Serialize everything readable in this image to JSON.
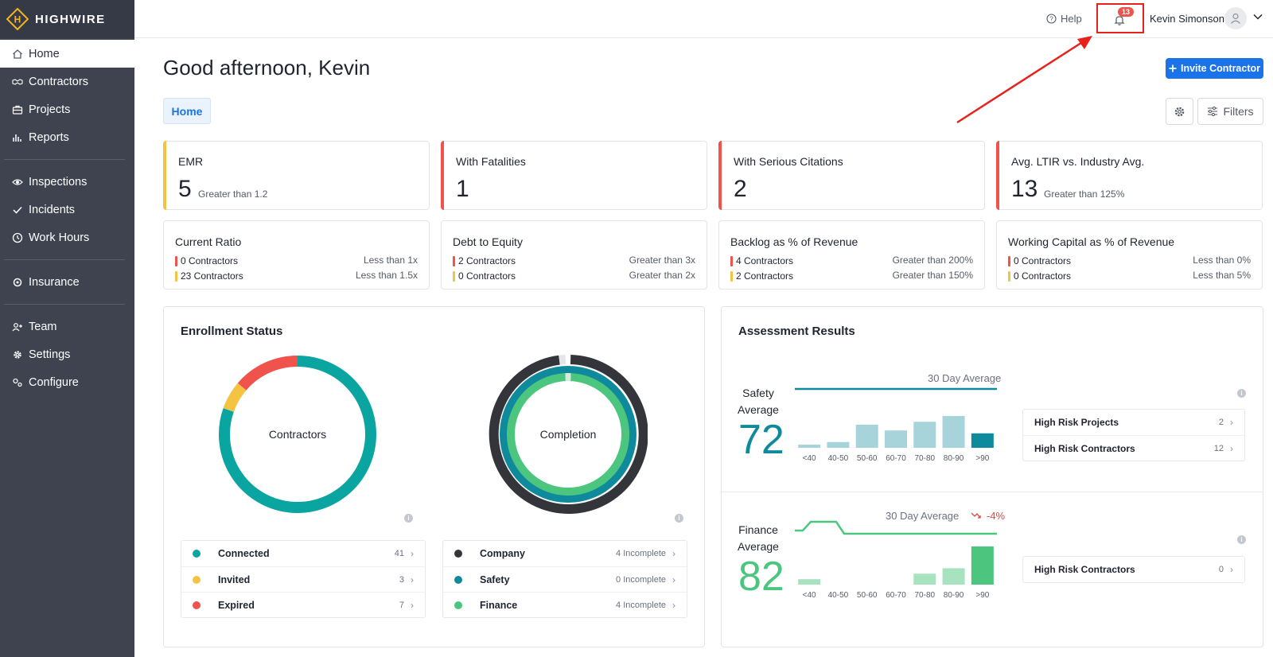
{
  "app": {
    "brand": "HIGHWIRE"
  },
  "sidebar": {
    "items": [
      {
        "label": "Home",
        "icon": "home-icon"
      },
      {
        "label": "Contractors",
        "icon": "handshake-icon"
      },
      {
        "label": "Projects",
        "icon": "briefcase-icon"
      },
      {
        "label": "Reports",
        "icon": "bar-chart-icon"
      },
      {
        "label": "Inspections",
        "icon": "eye-icon"
      },
      {
        "label": "Incidents",
        "icon": "check-icon"
      },
      {
        "label": "Work Hours",
        "icon": "clock-icon"
      },
      {
        "label": "Insurance",
        "icon": "shield-icon"
      },
      {
        "label": "Team",
        "icon": "users-icon"
      },
      {
        "label": "Settings",
        "icon": "gear-icon"
      },
      {
        "label": "Configure",
        "icon": "configure-icon"
      }
    ]
  },
  "topbar": {
    "help_label": "Help",
    "notification_count": "13",
    "user_name": "Kevin Simonson"
  },
  "header": {
    "greeting": "Good afternoon, Kevin",
    "invite_label": "Invite Contractor",
    "tab_label": "Home",
    "filters_label": "Filters"
  },
  "kpis": [
    {
      "label": "EMR",
      "value": "5",
      "sub": "Greater than 1.2",
      "color": "#f5c342"
    },
    {
      "label": "With Fatalities",
      "value": "1",
      "sub": "",
      "color": "#f0534b"
    },
    {
      "label": "With Serious Citations",
      "value": "2",
      "sub": "",
      "color": "#f0534b"
    },
    {
      "label": "Avg. LTIR vs. Industry Avg.",
      "value": "13",
      "sub": "Greater than 125%",
      "color": "#f0534b"
    }
  ],
  "metrics": [
    {
      "label": "Current Ratio",
      "rows": [
        {
          "count": "0 Contractors",
          "threshold": "Less than 1x"
        },
        {
          "count": "23 Contractors",
          "threshold": "Less than 1.5x"
        }
      ]
    },
    {
      "label": "Debt to Equity",
      "rows": [
        {
          "count": "2 Contractors",
          "threshold": "Greater than 3x"
        },
        {
          "count": "0 Contractors",
          "threshold": "Greater than 2x"
        }
      ]
    },
    {
      "label": "Backlog as % of Revenue",
      "rows": [
        {
          "count": "4 Contractors",
          "threshold": "Greater than 200%"
        },
        {
          "count": "2 Contractors",
          "threshold": "Greater than 150%"
        }
      ]
    },
    {
      "label": "Working Capital as % of Revenue",
      "rows": [
        {
          "count": "0 Contractors",
          "threshold": "Less than 0%"
        },
        {
          "count": "0 Contractors",
          "threshold": "Less than 5%"
        }
      ]
    }
  ],
  "enrollment": {
    "title": "Enrollment Status",
    "contractors_label": "Contractors",
    "completion_label": "Completion",
    "contractors_legend": [
      {
        "name": "Connected",
        "value": "41",
        "color": "#0aa5a0"
      },
      {
        "name": "Invited",
        "value": "3",
        "color": "#f5c342"
      },
      {
        "name": "Expired",
        "value": "7",
        "color": "#f0534b"
      }
    ],
    "completion_legend": [
      {
        "name": "Company",
        "value": "4 Incomplete",
        "color": "#33353b"
      },
      {
        "name": "Safety",
        "value": "0 Incomplete",
        "color": "#0e8a9c"
      },
      {
        "name": "Finance",
        "value": "4 Incomplete",
        "color": "#4cc67e"
      }
    ]
  },
  "assessment": {
    "title": "Assessment Results",
    "safety": {
      "label_line1": "Safety",
      "label_line2": "Average",
      "value": "72",
      "caption": "30 Day Average",
      "color": "#0e8a9c",
      "risk_items": [
        {
          "name": "High Risk Projects",
          "value": "2"
        },
        {
          "name": "High Risk Contractors",
          "value": "12"
        }
      ]
    },
    "finance": {
      "label_line1": "Finance",
      "label_line2": "Average",
      "value": "82",
      "caption": "30 Day Average",
      "trend": "-4%",
      "color": "#4cc67e",
      "risk_items": [
        {
          "name": "High Risk Contractors",
          "value": "0"
        }
      ]
    }
  },
  "chart_data": [
    {
      "type": "pie",
      "title": "Contractors",
      "categories": [
        "Connected",
        "Invited",
        "Expired"
      ],
      "values": [
        41,
        3,
        7
      ]
    },
    {
      "type": "bar",
      "title": "Safety Average",
      "categories": [
        "<40",
        "40-50",
        "50-60",
        "60-70",
        "70-80",
        "80-90",
        ">90"
      ],
      "values": [
        1,
        2,
        8,
        6,
        9,
        11,
        5
      ],
      "highlight": ">90"
    },
    {
      "type": "bar",
      "title": "Finance Average",
      "categories": [
        "<40",
        "40-50",
        "50-60",
        "60-70",
        "70-80",
        "80-90",
        ">90"
      ],
      "values": [
        2,
        0,
        0,
        0,
        4,
        6,
        14
      ],
      "highlight": ">90"
    }
  ]
}
